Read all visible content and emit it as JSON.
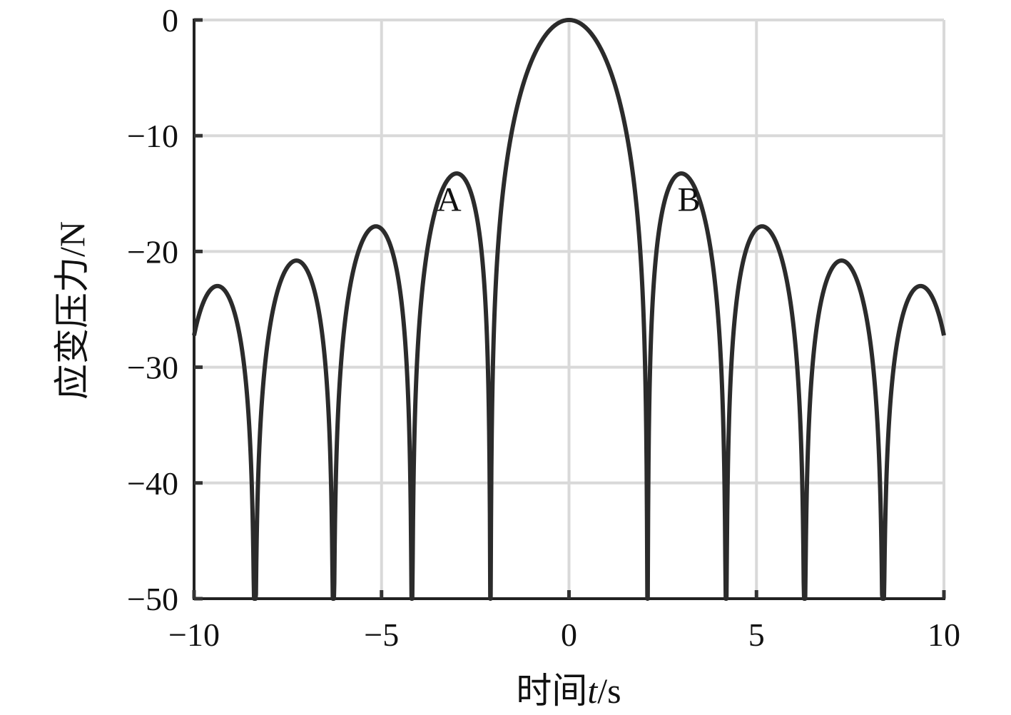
{
  "chart_data": {
    "type": "line",
    "xlabel": {
      "prefix": "时间",
      "var": "t",
      "suffix": "/s"
    },
    "ylabel": "应变压力/N",
    "xlim": [
      -10,
      10
    ],
    "ylim": [
      -50,
      0
    ],
    "x_ticks": [
      -10,
      -5,
      0,
      5,
      10
    ],
    "y_ticks": [
      0,
      -10,
      -20,
      -30,
      -40,
      -50
    ],
    "x_tick_labels": [
      "−10",
      "−5",
      "0",
      "5",
      "10"
    ],
    "y_tick_labels": [
      "0",
      "−10",
      "−20",
      "−30",
      "−40",
      "−50"
    ],
    "grid": true,
    "line_color": "#2b2b2b",
    "grid_color": "#d9d9d9",
    "series": [
      {
        "x_start": -10,
        "x_end": 10,
        "step": 0.01,
        "function": "20*log10(|sin(1.5*t)/(1.5*t)|)"
      }
    ],
    "annotations": [
      {
        "label": "A",
        "x": -3.2,
        "y": -15.5
      },
      {
        "label": "B",
        "x": 3.2,
        "y": -15.5
      }
    ]
  }
}
